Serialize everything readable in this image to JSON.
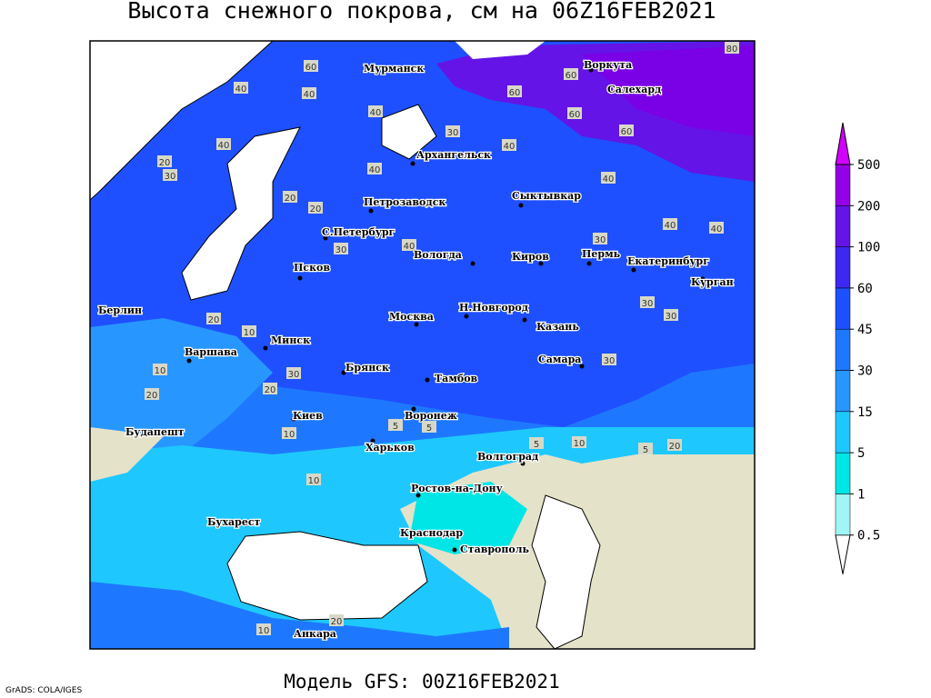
{
  "header": {
    "title": "Высота снежного покрова, см на 06Z16FEB2021"
  },
  "map": {
    "cities": [
      "Мурманск",
      "Воркута",
      "Салехард",
      "Архангельск",
      "Сыктывкар",
      "Петрозаводск",
      "С.Петербург",
      "Вологда",
      "Киров",
      "Пермь",
      "Екатеринбург",
      "Псков",
      "Курган",
      "Берлин",
      "Москва",
      "Н.Новгород",
      "Казань",
      "Варшава",
      "Минск",
      "Самара",
      "Брянск",
      "Тамбов",
      "Киев",
      "Воронеж",
      "Будапешт",
      "Харьков",
      "Волгоград",
      "Ростов-на-Дону",
      "Бухарест",
      "Краснодар",
      "Ставрополь",
      "Анкара"
    ],
    "contour_labels": [
      80,
      60,
      60,
      40,
      60,
      40,
      40,
      60,
      30,
      60,
      40,
      20,
      40,
      40,
      30,
      20,
      20,
      30,
      40,
      40,
      40,
      30,
      30,
      30,
      20,
      10,
      20,
      10,
      40,
      30,
      20,
      30,
      10,
      5,
      5,
      5,
      10,
      5,
      20,
      10,
      10,
      20
    ]
  },
  "legend": {
    "levels": [
      0.5,
      1,
      5,
      15,
      30,
      45,
      60,
      100,
      200,
      500
    ],
    "colors": [
      "#ffffff",
      "#a0f5f5",
      "#00e6e6",
      "#1ec8ff",
      "#2896ff",
      "#1e78ff",
      "#1e50ff",
      "#3c28f0",
      "#6414e6",
      "#9600e6",
      "#d200ff"
    ]
  },
  "footer": {
    "credit": "GrADS: COLA/IGES",
    "model": "Модель GFS: 00Z16FEB2021"
  }
}
